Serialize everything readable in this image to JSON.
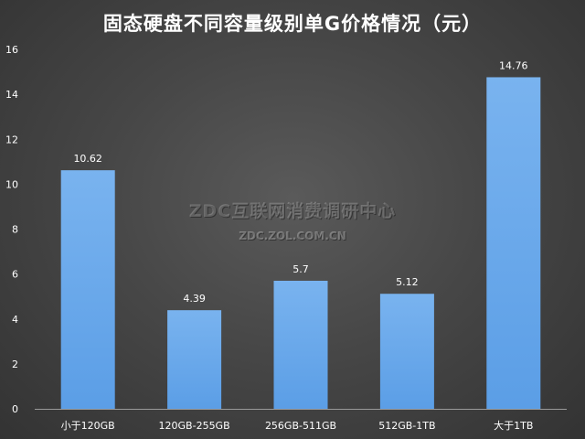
{
  "chart_data": {
    "type": "bar",
    "title": "固态硬盘不同容量级别单G价格情况（元）",
    "categories": [
      "小于120GB",
      "120GB-255GB",
      "256GB-511GB",
      "512GB-1TB",
      "大于1TB"
    ],
    "values": [
      10.62,
      4.39,
      5.7,
      5.12,
      14.76
    ],
    "data_labels": [
      "10.62",
      "4.39",
      "5.7",
      "5.12",
      "14.76"
    ],
    "yticks": [
      "0",
      "2",
      "4",
      "6",
      "8",
      "10",
      "12",
      "14",
      "16"
    ],
    "ylim": [
      0,
      16
    ],
    "xlabel": "",
    "ylabel": "",
    "grid": false,
    "legend": "none",
    "bar_color": "#5b9ee6",
    "bar_color_light": "#79b3ef"
  },
  "watermark": {
    "main": "ZDC互联网消费调研中心",
    "sub": "ZDC.ZOL.COM.CN"
  }
}
